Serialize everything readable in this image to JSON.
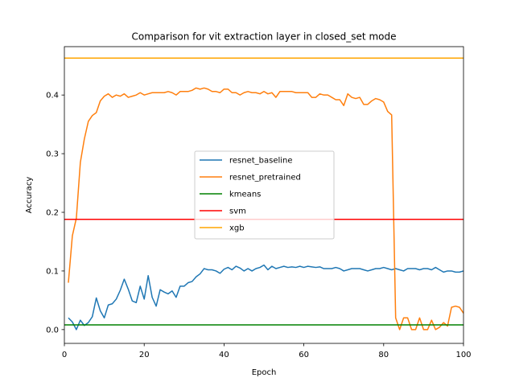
{
  "chart_data": {
    "type": "line",
    "title": "Comparison for vit extraction layer in closed_set mode",
    "xlabel": "Epoch",
    "ylabel": "Accuracy",
    "xlim": [
      0,
      100
    ],
    "ylim": [
      -0.0235,
      0.4825
    ],
    "xticks": [
      0,
      20,
      40,
      60,
      80,
      100
    ],
    "yticks": [
      0.0,
      0.1,
      0.2,
      0.3,
      0.4
    ],
    "xtick_labels": [
      "0",
      "20",
      "40",
      "60",
      "80",
      "100"
    ],
    "ytick_labels": [
      "0.0",
      "0.1",
      "0.2",
      "0.3",
      "0.4"
    ],
    "grid": false,
    "legend_position": "center",
    "x": [
      1,
      2,
      3,
      4,
      5,
      6,
      7,
      8,
      9,
      10,
      11,
      12,
      13,
      14,
      15,
      16,
      17,
      18,
      19,
      20,
      21,
      22,
      23,
      24,
      25,
      26,
      27,
      28,
      29,
      30,
      31,
      32,
      33,
      34,
      35,
      36,
      37,
      38,
      39,
      40,
      41,
      42,
      43,
      44,
      45,
      46,
      47,
      48,
      49,
      50,
      51,
      52,
      53,
      54,
      55,
      56,
      57,
      58,
      59,
      60,
      61,
      62,
      63,
      64,
      65,
      66,
      67,
      68,
      69,
      70,
      71,
      72,
      73,
      74,
      75,
      76,
      77,
      78,
      79,
      80,
      81,
      82,
      83,
      84,
      85,
      86,
      87,
      88,
      89,
      90,
      91,
      92,
      93,
      94,
      95,
      96,
      97,
      98,
      99,
      100
    ],
    "series": [
      {
        "name": "resnet_baseline",
        "color": "#1f77b4",
        "values": [
          0.02,
          0.013,
          0.0,
          0.016,
          0.007,
          0.012,
          0.022,
          0.054,
          0.032,
          0.02,
          0.042,
          0.044,
          0.052,
          0.067,
          0.086,
          0.069,
          0.049,
          0.046,
          0.074,
          0.052,
          0.092,
          0.055,
          0.04,
          0.068,
          0.064,
          0.061,
          0.066,
          0.055,
          0.074,
          0.074,
          0.08,
          0.082,
          0.09,
          0.095,
          0.104,
          0.102,
          0.102,
          0.1,
          0.096,
          0.103,
          0.106,
          0.102,
          0.108,
          0.105,
          0.1,
          0.104,
          0.1,
          0.104,
          0.106,
          0.11,
          0.102,
          0.108,
          0.104,
          0.106,
          0.108,
          0.106,
          0.107,
          0.106,
          0.108,
          0.106,
          0.108,
          0.107,
          0.106,
          0.107,
          0.104,
          0.104,
          0.104,
          0.106,
          0.104,
          0.1,
          0.102,
          0.104,
          0.104,
          0.104,
          0.102,
          0.1,
          0.102,
          0.104,
          0.104,
          0.106,
          0.104,
          0.102,
          0.104,
          0.102,
          0.1,
          0.104,
          0.104,
          0.104,
          0.102,
          0.104,
          0.104,
          0.102,
          0.106,
          0.102,
          0.098,
          0.1,
          0.1,
          0.098,
          0.098,
          0.1
        ]
      },
      {
        "name": "resnet_pretrained",
        "color": "#ff7f0e",
        "values": [
          0.08,
          0.16,
          0.19,
          0.285,
          0.325,
          0.355,
          0.365,
          0.37,
          0.39,
          0.398,
          0.402,
          0.396,
          0.4,
          0.398,
          0.402,
          0.396,
          0.398,
          0.4,
          0.404,
          0.4,
          0.402,
          0.404,
          0.404,
          0.404,
          0.404,
          0.406,
          0.404,
          0.4,
          0.406,
          0.406,
          0.406,
          0.408,
          0.412,
          0.41,
          0.412,
          0.41,
          0.406,
          0.406,
          0.404,
          0.41,
          0.41,
          0.404,
          0.404,
          0.4,
          0.404,
          0.406,
          0.404,
          0.404,
          0.402,
          0.406,
          0.402,
          0.404,
          0.396,
          0.406,
          0.406,
          0.406,
          0.406,
          0.404,
          0.404,
          0.404,
          0.404,
          0.396,
          0.396,
          0.402,
          0.4,
          0.4,
          0.396,
          0.392,
          0.392,
          0.382,
          0.402,
          0.396,
          0.394,
          0.396,
          0.384,
          0.384,
          0.39,
          0.394,
          0.392,
          0.388,
          0.372,
          0.366,
          0.02,
          0.0,
          0.02,
          0.02,
          0.0,
          0.0,
          0.02,
          0.0,
          0.0,
          0.016,
          0.0,
          0.004,
          0.012,
          0.006,
          0.038,
          0.04,
          0.038,
          0.028
        ]
      },
      {
        "name": "kmeans",
        "color": "#008000",
        "constant": 0.008
      },
      {
        "name": "svm",
        "color": "#ff0000",
        "constant": 0.188
      },
      {
        "name": "xgb",
        "color": "#ffa500",
        "constant": 0.463
      }
    ]
  }
}
